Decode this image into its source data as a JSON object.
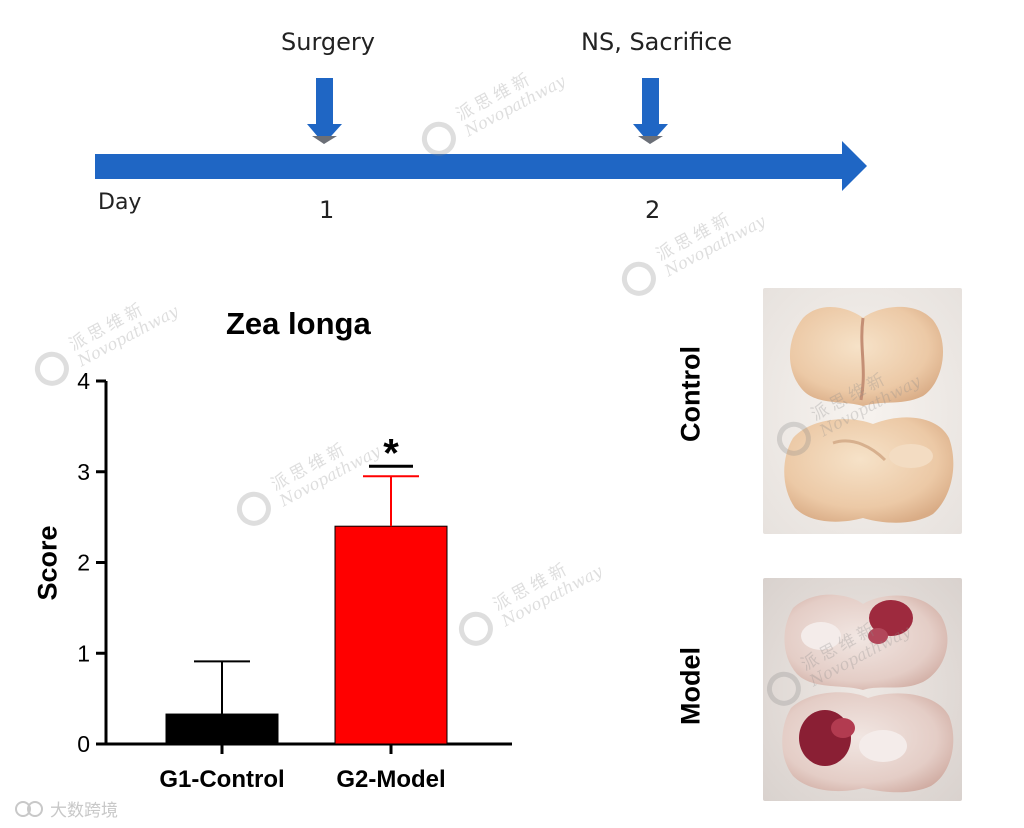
{
  "timeline": {
    "events": [
      {
        "label": "Surgery",
        "day": "1"
      },
      {
        "label": "NS, Sacrifice",
        "day": "2"
      }
    ],
    "axis_label": "Day",
    "color": "#1f66c4"
  },
  "chart_data": {
    "type": "bar",
    "title": "Zea longa",
    "categories": [
      "G1-Control",
      "G2-Model"
    ],
    "values": [
      0.33,
      2.4
    ],
    "errors": [
      0.58,
      0.55
    ],
    "colors": [
      "#000000",
      "#ff0000"
    ],
    "ylabel": "Score",
    "xlabel": "",
    "ylim": [
      0,
      4
    ],
    "yticks": [
      0,
      1,
      2,
      3,
      4
    ],
    "annotations": [
      {
        "category": "G2-Model",
        "text": "*"
      }
    ]
  },
  "images": {
    "control_label": "Control",
    "model_label": "Model"
  },
  "watermark": {
    "cn": "派思维新",
    "en": "Novopathway"
  },
  "footer": {
    "text": "大数跨境"
  }
}
